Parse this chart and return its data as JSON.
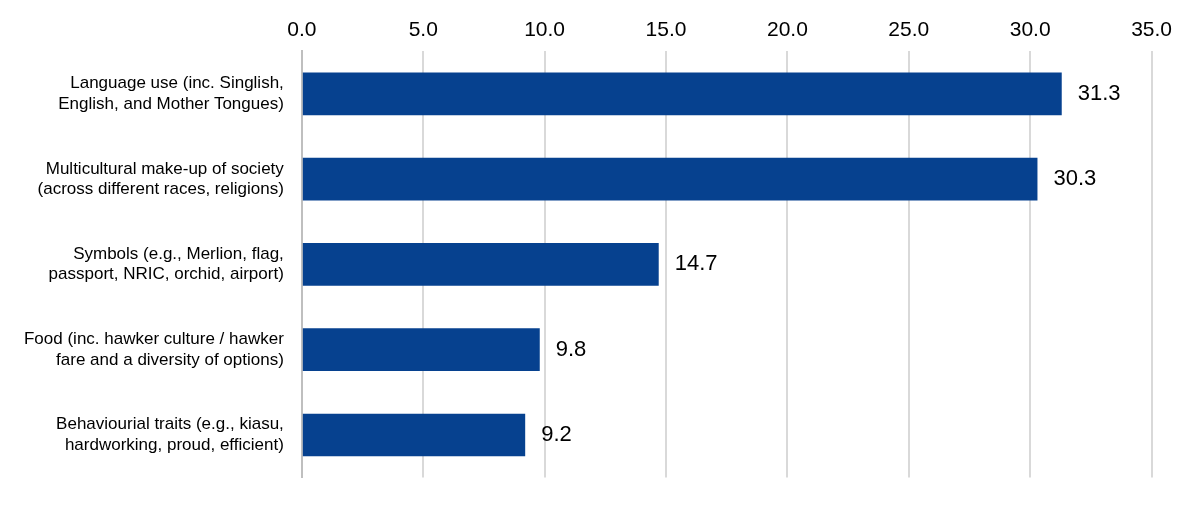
{
  "chart_data": {
    "type": "bar",
    "orientation": "horizontal",
    "categories": [
      "Language use (inc. Singlish, English, and Mother Tongues)",
      "Multicultural make-up of society (across different races, religions)",
      "Symbols (e.g., Merlion, flag, passport, NRIC, orchid, airport)",
      "Food (inc. hawker culture / hawker fare and a diversity of options)",
      "Behaviourial traits (e.g., kiasu, hardworking, proud, efficient)"
    ],
    "values": [
      31.3,
      30.3,
      14.7,
      9.8,
      9.2
    ],
    "color": "#06418f",
    "xlim": [
      0,
      35
    ],
    "xticks": [
      {
        "value": 0,
        "label": "0.0"
      },
      {
        "value": 5,
        "label": "5.0"
      },
      {
        "value": 10,
        "label": "10.0"
      },
      {
        "value": 15,
        "label": "15.0"
      },
      {
        "value": 20,
        "label": "20.0"
      },
      {
        "value": 25,
        "label": "25.0"
      },
      {
        "value": 30,
        "label": "30.0"
      },
      {
        "value": 35,
        "label": "35.0"
      }
    ],
    "grid": "x",
    "data_labels": true,
    "legend": false
  }
}
